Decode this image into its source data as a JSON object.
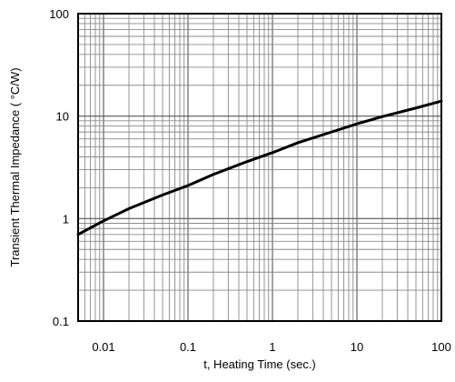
{
  "chart_data": {
    "type": "line",
    "title": "",
    "xlabel": "t, Heating Time (sec.)",
    "ylabel": "Transient Thermal Impedance ( °C/W)",
    "x_scale": "log",
    "y_scale": "log",
    "xlim": [
      0.005,
      100
    ],
    "ylim": [
      0.1,
      100
    ],
    "x_ticks": [
      0.01,
      0.1,
      1,
      10,
      100
    ],
    "x_tick_labels": [
      "0.01",
      "0.1",
      "1",
      "10",
      "100"
    ],
    "y_ticks": [
      0.1,
      1,
      10,
      100
    ],
    "y_tick_labels": [
      "0.1",
      "1",
      "10",
      "100"
    ],
    "grid": true,
    "series": [
      {
        "x": [
          0.005,
          0.01,
          0.02,
          0.05,
          0.1,
          0.2,
          0.5,
          1,
          2,
          5,
          10,
          20,
          50,
          100
        ],
        "y": [
          0.7,
          0.95,
          1.25,
          1.7,
          2.1,
          2.7,
          3.6,
          4.4,
          5.5,
          7.0,
          8.4,
          9.9,
          12.0,
          14.0
        ]
      }
    ]
  }
}
